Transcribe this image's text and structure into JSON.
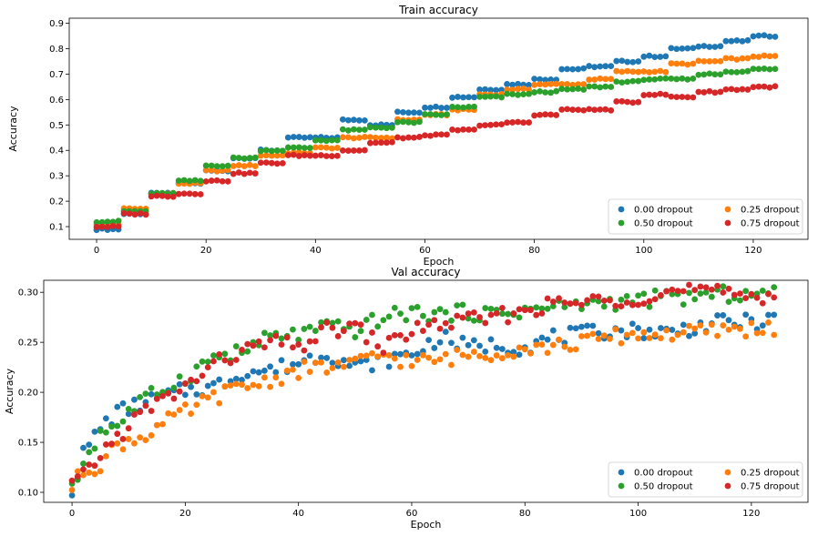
{
  "chart_data": [
    {
      "type": "scatter",
      "title": "Train accuracy",
      "xlabel": "Epoch",
      "ylabel": "Accuracy",
      "xlim": [
        -5,
        130
      ],
      "ylim": [
        0.05,
        0.92
      ],
      "xticks": [
        0,
        20,
        40,
        60,
        80,
        100,
        120
      ],
      "xtick_labels": [
        "0",
        "20",
        "40",
        "60",
        "80",
        "100",
        "120"
      ],
      "yticks": [
        0.1,
        0.2,
        0.3,
        0.4,
        0.5,
        0.6,
        0.7,
        0.8,
        0.9
      ],
      "ytick_labels": [
        "0.1",
        "0.2",
        "0.3",
        "0.4",
        "0.5",
        "0.6",
        "0.7",
        "0.8",
        "0.9"
      ],
      "grid": false,
      "legend": "lower-right",
      "legend_columns": 2,
      "series": [
        {
          "name": "0.00 dropout",
          "color": "#1f77b4",
          "y_knots": [
            [
              0,
              0.09
            ],
            [
              5,
              0.15
            ],
            [
              10,
              0.23
            ],
            [
              15,
              0.27
            ],
            [
              20,
              0.32
            ],
            [
              25,
              0.37
            ],
            [
              30,
              0.4
            ],
            [
              35,
              0.45
            ],
            [
              40,
              0.45
            ],
            [
              45,
              0.52
            ],
            [
              50,
              0.5
            ],
            [
              55,
              0.55
            ],
            [
              60,
              0.57
            ],
            [
              65,
              0.61
            ],
            [
              70,
              0.64
            ],
            [
              75,
              0.66
            ],
            [
              80,
              0.68
            ],
            [
              85,
              0.72
            ],
            [
              90,
              0.73
            ],
            [
              95,
              0.75
            ],
            [
              100,
              0.77
            ],
            [
              105,
              0.8
            ],
            [
              110,
              0.81
            ],
            [
              115,
              0.83
            ],
            [
              120,
              0.85
            ],
            [
              124,
              0.87
            ]
          ]
        },
        {
          "name": "0.25 dropout",
          "color": "#ff7f0e",
          "y_knots": [
            [
              0,
              0.11
            ],
            [
              5,
              0.17
            ],
            [
              10,
              0.23
            ],
            [
              15,
              0.27
            ],
            [
              20,
              0.32
            ],
            [
              25,
              0.34
            ],
            [
              30,
              0.38
            ],
            [
              35,
              0.39
            ],
            [
              40,
              0.41
            ],
            [
              45,
              0.45
            ],
            [
              50,
              0.45
            ],
            [
              55,
              0.52
            ],
            [
              60,
              0.54
            ],
            [
              65,
              0.56
            ],
            [
              70,
              0.62
            ],
            [
              75,
              0.64
            ],
            [
              80,
              0.66
            ],
            [
              85,
              0.66
            ],
            [
              90,
              0.68
            ],
            [
              95,
              0.71
            ],
            [
              100,
              0.71
            ],
            [
              105,
              0.74
            ],
            [
              110,
              0.75
            ],
            [
              115,
              0.76
            ],
            [
              120,
              0.77
            ],
            [
              124,
              0.8
            ]
          ]
        },
        {
          "name": "0.50 dropout",
          "color": "#2ca02c",
          "y_knots": [
            [
              0,
              0.12
            ],
            [
              5,
              0.16
            ],
            [
              10,
              0.23
            ],
            [
              15,
              0.28
            ],
            [
              20,
              0.34
            ],
            [
              25,
              0.37
            ],
            [
              30,
              0.4
            ],
            [
              35,
              0.41
            ],
            [
              40,
              0.44
            ],
            [
              45,
              0.48
            ],
            [
              50,
              0.49
            ],
            [
              55,
              0.51
            ],
            [
              60,
              0.54
            ],
            [
              65,
              0.57
            ],
            [
              70,
              0.61
            ],
            [
              75,
              0.62
            ],
            [
              80,
              0.63
            ],
            [
              85,
              0.64
            ],
            [
              90,
              0.65
            ],
            [
              95,
              0.67
            ],
            [
              100,
              0.68
            ],
            [
              105,
              0.68
            ],
            [
              110,
              0.7
            ],
            [
              115,
              0.71
            ],
            [
              120,
              0.72
            ],
            [
              124,
              0.74
            ]
          ]
        },
        {
          "name": "0.75 dropout",
          "color": "#d62728",
          "y_knots": [
            [
              0,
              0.1
            ],
            [
              5,
              0.15
            ],
            [
              10,
              0.22
            ],
            [
              15,
              0.23
            ],
            [
              20,
              0.28
            ],
            [
              25,
              0.31
            ],
            [
              30,
              0.35
            ],
            [
              35,
              0.38
            ],
            [
              40,
              0.38
            ],
            [
              45,
              0.4
            ],
            [
              50,
              0.43
            ],
            [
              55,
              0.45
            ],
            [
              60,
              0.46
            ],
            [
              65,
              0.48
            ],
            [
              70,
              0.5
            ],
            [
              75,
              0.51
            ],
            [
              80,
              0.54
            ],
            [
              85,
              0.56
            ],
            [
              90,
              0.56
            ],
            [
              95,
              0.59
            ],
            [
              100,
              0.62
            ],
            [
              105,
              0.61
            ],
            [
              110,
              0.63
            ],
            [
              115,
              0.64
            ],
            [
              120,
              0.65
            ],
            [
              124,
              0.67
            ]
          ]
        }
      ]
    },
    {
      "type": "scatter",
      "title": "Val accuracy",
      "xlabel": "Epoch",
      "ylabel": "Accuracy",
      "xlim": [
        -5,
        130
      ],
      "ylim": [
        0.09,
        0.312
      ],
      "xticks": [
        0,
        20,
        40,
        60,
        80,
        100,
        120
      ],
      "xtick_labels": [
        "0",
        "20",
        "40",
        "60",
        "80",
        "100",
        "120"
      ],
      "yticks": [
        0.1,
        0.15,
        0.2,
        0.25,
        0.3
      ],
      "ytick_labels": [
        "0.10",
        "0.15",
        "0.20",
        "0.25",
        "0.30"
      ],
      "grid": false,
      "legend": "lower-right",
      "legend_columns": 2,
      "series": [
        {
          "name": "0.00 dropout",
          "color": "#1f77b4",
          "y_knots": [
            [
              0,
              0.103
            ],
            [
              2,
              0.138
            ],
            [
              5,
              0.165
            ],
            [
              8,
              0.18
            ],
            [
              12,
              0.188
            ],
            [
              16,
              0.195
            ],
            [
              20,
              0.202
            ],
            [
              25,
              0.205
            ],
            [
              30,
              0.22
            ],
            [
              35,
              0.222
            ],
            [
              40,
              0.23
            ],
            [
              45,
              0.24
            ],
            [
              50,
              0.225
            ],
            [
              55,
              0.232
            ],
            [
              60,
              0.238
            ],
            [
              65,
              0.255
            ],
            [
              70,
              0.245
            ],
            [
              75,
              0.248
            ],
            [
              80,
              0.245
            ],
            [
              85,
              0.255
            ],
            [
              90,
              0.258
            ],
            [
              95,
              0.262
            ],
            [
              100,
              0.262
            ],
            [
              105,
              0.26
            ],
            [
              110,
              0.265
            ],
            [
              115,
              0.27
            ],
            [
              120,
              0.27
            ],
            [
              124,
              0.272
            ]
          ]
        },
        {
          "name": "0.25 dropout",
          "color": "#ff7f0e",
          "y_knots": [
            [
              0,
              0.105
            ],
            [
              2,
              0.122
            ],
            [
              5,
              0.128
            ],
            [
              8,
              0.148
            ],
            [
              12,
              0.155
            ],
            [
              16,
              0.168
            ],
            [
              20,
              0.18
            ],
            [
              25,
              0.195
            ],
            [
              30,
              0.205
            ],
            [
              35,
              0.212
            ],
            [
              40,
              0.222
            ],
            [
              45,
              0.225
            ],
            [
              50,
              0.228
            ],
            [
              55,
              0.238
            ],
            [
              60,
              0.23
            ],
            [
              65,
              0.232
            ],
            [
              70,
              0.238
            ],
            [
              75,
              0.24
            ],
            [
              80,
              0.245
            ],
            [
              85,
              0.245
            ],
            [
              90,
              0.25
            ],
            [
              95,
              0.255
            ],
            [
              100,
              0.258
            ],
            [
              105,
              0.258
            ],
            [
              110,
              0.26
            ],
            [
              115,
              0.262
            ],
            [
              120,
              0.264
            ],
            [
              124,
              0.264
            ]
          ]
        },
        {
          "name": "0.50 dropout",
          "color": "#2ca02c",
          "y_knots": [
            [
              0,
              0.102
            ],
            [
              2,
              0.13
            ],
            [
              5,
              0.16
            ],
            [
              8,
              0.168
            ],
            [
              12,
              0.19
            ],
            [
              16,
              0.203
            ],
            [
              20,
              0.215
            ],
            [
              25,
              0.235
            ],
            [
              30,
              0.24
            ],
            [
              35,
              0.255
            ],
            [
              40,
              0.258
            ],
            [
              45,
              0.265
            ],
            [
              50,
              0.262
            ],
            [
              55,
              0.275
            ],
            [
              60,
              0.28
            ],
            [
              65,
              0.278
            ],
            [
              70,
              0.28
            ],
            [
              75,
              0.278
            ],
            [
              80,
              0.282
            ],
            [
              85,
              0.285
            ],
            [
              90,
              0.288
            ],
            [
              95,
              0.29
            ],
            [
              100,
              0.292
            ],
            [
              105,
              0.295
            ],
            [
              110,
              0.295
            ],
            [
              115,
              0.298
            ],
            [
              120,
              0.298
            ],
            [
              124,
              0.298
            ]
          ]
        },
        {
          "name": "0.75 dropout",
          "color": "#d62728",
          "y_knots": [
            [
              0,
              0.108
            ],
            [
              2,
              0.115
            ],
            [
              5,
              0.138
            ],
            [
              8,
              0.155
            ],
            [
              12,
              0.178
            ],
            [
              16,
              0.192
            ],
            [
              20,
              0.205
            ],
            [
              25,
              0.228
            ],
            [
              30,
              0.24
            ],
            [
              35,
              0.25
            ],
            [
              40,
              0.245
            ],
            [
              45,
              0.262
            ],
            [
              50,
              0.265
            ],
            [
              55,
              0.245
            ],
            [
              60,
              0.262
            ],
            [
              65,
              0.268
            ],
            [
              70,
              0.272
            ],
            [
              75,
              0.275
            ],
            [
              80,
              0.282
            ],
            [
              85,
              0.288
            ],
            [
              90,
              0.29
            ],
            [
              95,
              0.292
            ],
            [
              100,
              0.295
            ],
            [
              105,
              0.3
            ],
            [
              110,
              0.302
            ],
            [
              115,
              0.298
            ],
            [
              120,
              0.298
            ],
            [
              124,
              0.296
            ]
          ]
        }
      ]
    }
  ]
}
